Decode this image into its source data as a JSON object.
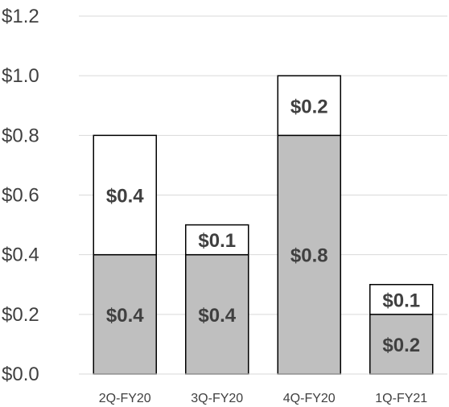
{
  "chart_data": {
    "type": "bar",
    "stacked": true,
    "categories": [
      "2Q-FY20",
      "3Q-FY20",
      "4Q-FY20",
      "1Q-FY21"
    ],
    "series": [
      {
        "values": [
          0.4,
          0.4,
          0.8,
          0.2
        ],
        "labels": [
          "$0.4",
          "$0.4",
          "$0.8",
          "$0.2"
        ],
        "color": "#bfbfbf"
      },
      {
        "values": [
          0.4,
          0.1,
          0.2,
          0.1
        ],
        "labels": [
          "$0.4",
          "$0.1",
          "$0.2",
          "$0.1"
        ],
        "color": "#ffffff"
      }
    ],
    "y_ticks": [
      "$0.0",
      "$0.2",
      "$0.4",
      "$0.6",
      "$0.8",
      "$1.0",
      "$1.2"
    ],
    "ylim": [
      0,
      1.2
    ],
    "grid": true,
    "legend": "none"
  }
}
